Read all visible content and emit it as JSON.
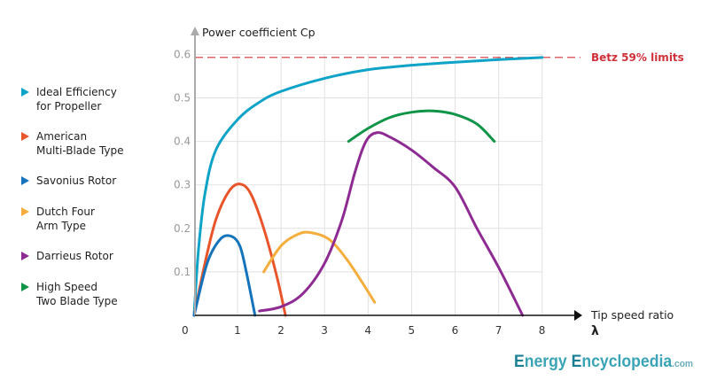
{
  "chart_data": {
    "type": "line",
    "ylabel": "Power coefficient Cp",
    "xlabel": "Tip speed ratio",
    "xlabel_symbol": "λ",
    "xlim": [
      0,
      8
    ],
    "ylim": [
      0,
      0.6
    ],
    "xticks": [
      "0",
      "1",
      "2",
      "3",
      "4",
      "5",
      "6",
      "7",
      "8"
    ],
    "yticks": [
      "0.1",
      "0.2",
      "0.3",
      "0.4",
      "0.5",
      "0.6"
    ],
    "grid": true,
    "legend_placement": "left",
    "reference_line": {
      "label": "Betz 59% limits",
      "y": 0.593,
      "color": "#d0303a"
    },
    "series": [
      {
        "name": "Ideal Efficiency for Propeller",
        "legend_lines": [
          "Ideal Efficiency",
          "for Propeller"
        ],
        "color": "#0fa3c8",
        "points": [
          [
            0,
            0
          ],
          [
            0.1,
            0.15
          ],
          [
            0.25,
            0.28
          ],
          [
            0.5,
            0.38
          ],
          [
            1,
            0.45
          ],
          [
            1.5,
            0.49
          ],
          [
            2,
            0.515
          ],
          [
            3,
            0.545
          ],
          [
            4,
            0.565
          ],
          [
            5,
            0.575
          ],
          [
            6,
            0.582
          ],
          [
            7,
            0.588
          ],
          [
            8,
            0.593
          ]
        ]
      },
      {
        "name": "American Multi-Blade Type",
        "legend_lines": [
          "American",
          "Multi-Blade Type"
        ],
        "color": "#e8552b",
        "points": [
          [
            0,
            0
          ],
          [
            0.25,
            0.12
          ],
          [
            0.5,
            0.22
          ],
          [
            0.8,
            0.285
          ],
          [
            1.05,
            0.302
          ],
          [
            1.3,
            0.28
          ],
          [
            1.6,
            0.2
          ],
          [
            1.9,
            0.09
          ],
          [
            2.1,
            0
          ]
        ]
      },
      {
        "name": "Savonius Rotor",
        "legend_lines": [
          "Savonius Rotor"
        ],
        "color": "#1573bb",
        "points": [
          [
            0,
            0
          ],
          [
            0.3,
            0.12
          ],
          [
            0.6,
            0.175
          ],
          [
            0.85,
            0.182
          ],
          [
            1.05,
            0.16
          ],
          [
            1.2,
            0.1
          ],
          [
            1.4,
            0
          ]
        ]
      },
      {
        "name": "Dutch Four Arm Type",
        "legend_lines": [
          "Dutch Four",
          "Arm Type"
        ],
        "color": "#f5ae3d",
        "points": [
          [
            1.6,
            0.1
          ],
          [
            2,
            0.16
          ],
          [
            2.4,
            0.187
          ],
          [
            2.7,
            0.19
          ],
          [
            3.1,
            0.175
          ],
          [
            3.5,
            0.13
          ],
          [
            3.9,
            0.07
          ],
          [
            4.15,
            0.03
          ]
        ]
      },
      {
        "name": "Darrieus Rotor",
        "legend_lines": [
          "Darrieus Rotor"
        ],
        "color": "#8e2b93",
        "points": [
          [
            1.5,
            0.01
          ],
          [
            2,
            0.02
          ],
          [
            2.5,
            0.05
          ],
          [
            3,
            0.12
          ],
          [
            3.4,
            0.22
          ],
          [
            3.7,
            0.33
          ],
          [
            3.95,
            0.4
          ],
          [
            4.2,
            0.42
          ],
          [
            4.5,
            0.41
          ],
          [
            5,
            0.38
          ],
          [
            5.5,
            0.34
          ],
          [
            6,
            0.295
          ],
          [
            6.5,
            0.2
          ],
          [
            7,
            0.11
          ],
          [
            7.55,
            0
          ]
        ]
      },
      {
        "name": "High Speed Two Blade Type",
        "legend_lines": [
          "High Speed",
          "Two Blade Type"
        ],
        "color": "#109448",
        "points": [
          [
            3.55,
            0.4
          ],
          [
            4,
            0.43
          ],
          [
            4.5,
            0.455
          ],
          [
            5,
            0.467
          ],
          [
            5.5,
            0.47
          ],
          [
            6,
            0.462
          ],
          [
            6.5,
            0.44
          ],
          [
            6.9,
            0.4
          ]
        ]
      }
    ]
  },
  "logo": {
    "word1_cap": "E",
    "word1_rest": "nergy ",
    "word2_cap": "E",
    "word2_rest": "ncyclopedia",
    "suffix": ".com"
  }
}
